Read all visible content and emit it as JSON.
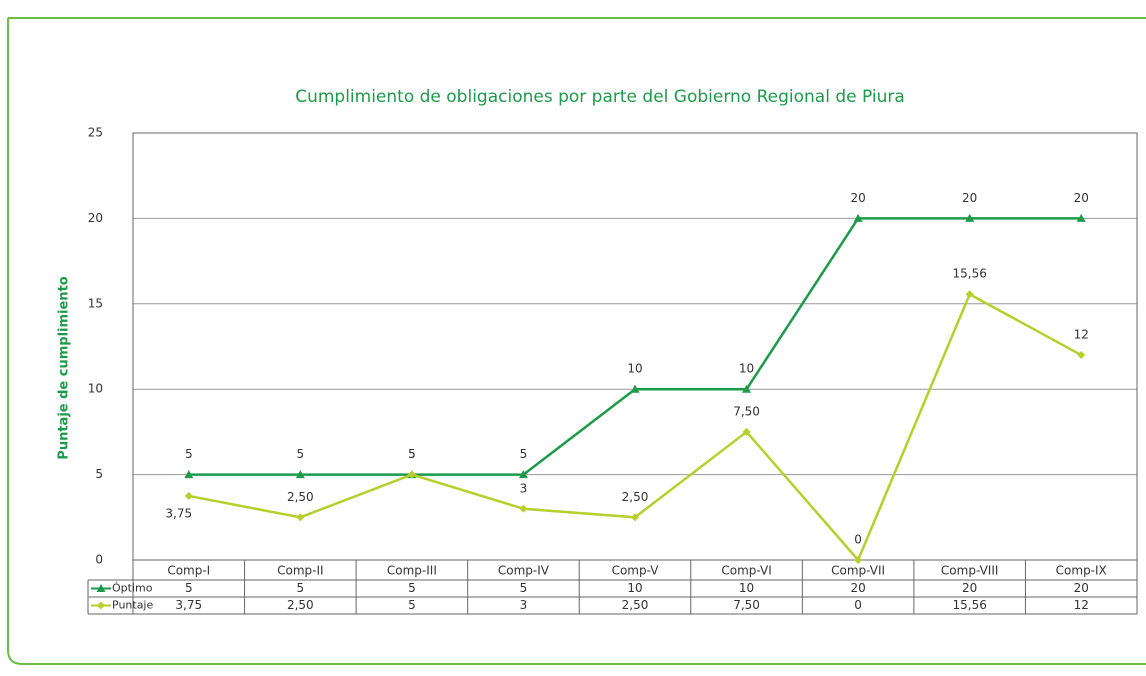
{
  "chart_data": {
    "type": "line",
    "title": "Cumplimiento de obligaciones por parte del Gobierno Regional de Piura",
    "y_label": "Puntaje de cumplimiento",
    "categories": [
      "Comp-I",
      "Comp-II",
      "Comp-III",
      "Comp-IV",
      "Comp-V",
      "Comp-VI",
      "Comp-VII",
      "Comp-VIII",
      "Comp-IX"
    ],
    "series": [
      {
        "name": "Óptimo",
        "color": "#1e9a4b",
        "marker": "triangle",
        "values": [
          5,
          5,
          5,
          5,
          10,
          10,
          20,
          20,
          20
        ]
      },
      {
        "name": "Puntaje",
        "color": "#b6cf2c",
        "marker": "diamond",
        "values": [
          3.75,
          2.5,
          5,
          3,
          2.5,
          7.5,
          0,
          15.56,
          12
        ],
        "value_labels": [
          "3,75",
          "2,50",
          "5",
          "3",
          "2,50",
          "7,50",
          "0",
          "15,56",
          "12"
        ]
      }
    ],
    "ylim": [
      0,
      25
    ],
    "yticks": [
      0,
      5,
      10,
      15,
      20,
      25
    ],
    "grid": true,
    "data_table": true
  }
}
